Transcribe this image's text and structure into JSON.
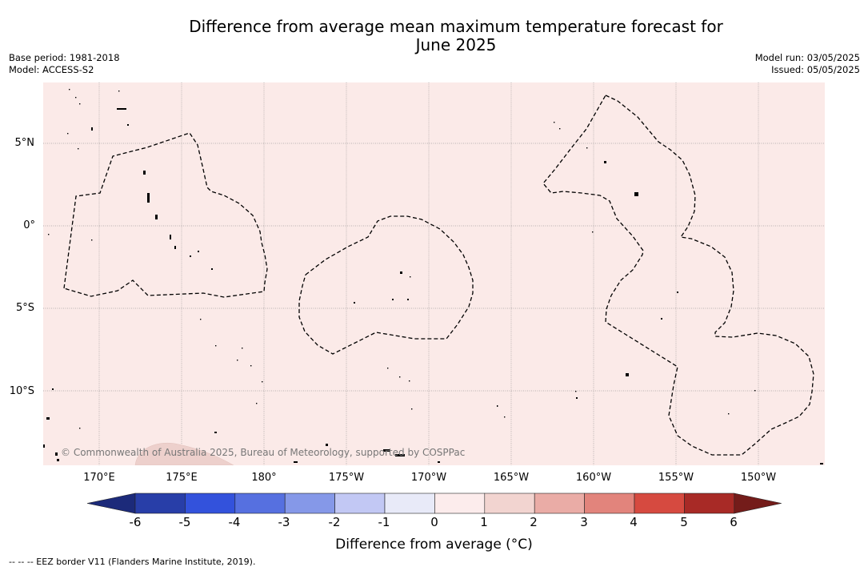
{
  "title_line1": "Difference from average mean maximum temperature forecast for",
  "title_line2": "June 2025",
  "base_period": "Base period: 1981-2018",
  "model": "Model: ACCESS-S2",
  "model_run": "Model run: 03/05/2025",
  "issued": "Issued: 05/05/2025",
  "lat_labels": [
    "5°N",
    "0°",
    "5°S",
    "10°S"
  ],
  "lon_labels": [
    "170°E",
    "175°E",
    "180°",
    "175°W",
    "170°W",
    "165°W",
    "160°W",
    "155°W",
    "150°W"
  ],
  "copyright": "© Commonwealth of Australia 2025, Bureau of Meteorology, supported by COSPPac",
  "colorbar": {
    "ticks": [
      "-6",
      "-5",
      "-4",
      "-3",
      "-2",
      "-1",
      "0",
      "1",
      "2",
      "3",
      "4",
      "5",
      "6"
    ],
    "colors": [
      "#283ea8",
      "#3352dc",
      "#5670e0",
      "#8598e8",
      "#c2c8f4",
      "#e8eaf8",
      "#fcecec",
      "#f2d4d0",
      "#eaaca6",
      "#e2847c",
      "#d64a40",
      "#a82a26"
    ],
    "under_color": "#1c2a7a",
    "over_color": "#741c1a",
    "label": "Difference from average (°C)"
  },
  "map_fill_color": "#fbeae8",
  "legend_note": "--  --  -- EEZ border V11 (Flanders Marine Institute, 2019)."
}
